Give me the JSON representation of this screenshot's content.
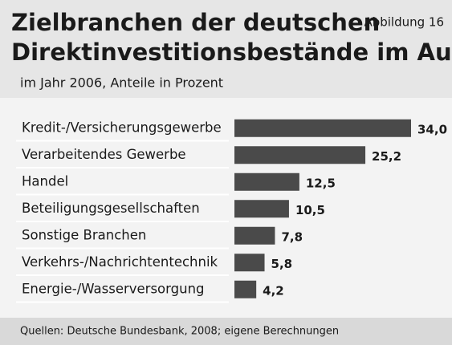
{
  "chart_data": {
    "type": "bar",
    "orientation": "horizontal",
    "title": "Zielbranchen der deutschen Direktinvestitionsbestände im Ausland",
    "title_lines": [
      "Zielbranchen der deutschen",
      "Direktinvestitionsbestände im Ausland"
    ],
    "figure_label": "Abbildung 16",
    "subtitle": "im Jahr 2006, Anteile in Prozent",
    "source": "Quellen: Deutsche Bundesbank, 2008; eigene Berechnungen",
    "categories": [
      "Kredit-/Versicherungsgewerbe",
      "Verarbeitendes Gewerbe",
      "Handel",
      "Beteiligungsgesellschaften",
      "Sonstige Branchen",
      "Verkehrs-/Nachrichtentechnik",
      "Energie-/Wasserversorgung"
    ],
    "values": [
      34.0,
      25.2,
      12.5,
      10.5,
      7.8,
      5.8,
      4.2
    ],
    "value_labels": [
      "34,0",
      "25,2",
      "12,5",
      "10,5",
      "7,8",
      "5,8",
      "4,2"
    ],
    "color": "#4a4a4a"
  }
}
